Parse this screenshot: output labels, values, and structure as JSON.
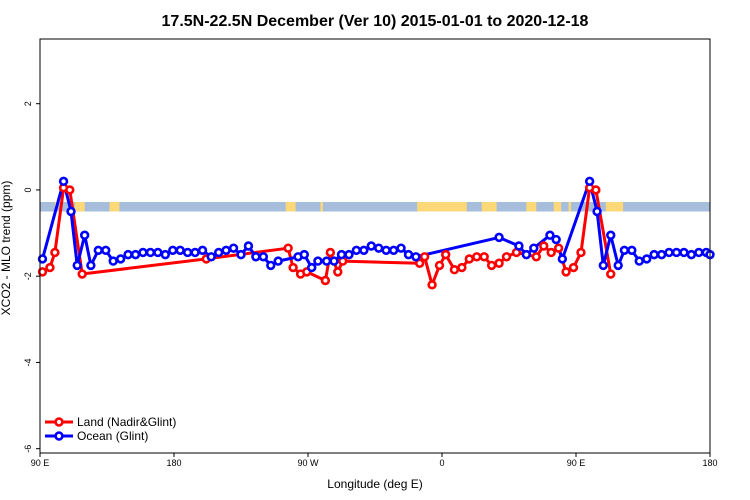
{
  "chart_data": {
    "type": "line",
    "title": "17.5N-22.5N December (Ver 10)   2015-01-01 to 2020-12-18",
    "xlabel": "Longitude (deg E)",
    "ylabel": "XCO2 - MLO trend (ppm)",
    "xlim": [
      -90,
      180
    ],
    "ylim": [
      -6.1,
      3.5
    ],
    "x_ticks": [
      {
        "value": -90,
        "label": "90 E"
      },
      {
        "value": -36,
        "label": "180"
      },
      {
        "value": 18,
        "label": "90 W"
      },
      {
        "value": 72,
        "label": "0"
      },
      {
        "value": 126,
        "label": "90 E"
      },
      {
        "value": 180,
        "label": "180"
      }
    ],
    "y_ticks": [
      {
        "value": 2,
        "label": "2"
      },
      {
        "value": 0,
        "label": "0"
      },
      {
        "value": -2,
        "label": "-2"
      },
      {
        "value": -4,
        "label": "-4"
      },
      {
        "value": -6,
        "label": "-6"
      }
    ],
    "land_ocean_band": {
      "y_top": -0.28,
      "y_bottom": -0.5,
      "ocean_color": "#a6bddb",
      "land_color": "#fdd878",
      "land_segments": [
        [
          -84,
          -83
        ],
        [
          -76,
          -72
        ],
        [
          -62,
          -58
        ],
        [
          9,
          13
        ],
        [
          23,
          24
        ],
        [
          62,
          82
        ],
        [
          88,
          94
        ],
        [
          106,
          110
        ],
        [
          117,
          120
        ],
        [
          123,
          124
        ],
        [
          138,
          145
        ]
      ]
    },
    "series": [
      {
        "name": "Land (Nadir&Glint)",
        "color": "#ff0000",
        "points": [
          [
            -89,
            -1.9
          ],
          [
            -86,
            -1.8
          ],
          [
            -84,
            -1.45
          ],
          [
            -80.5,
            0.05
          ],
          [
            -78,
            0.0
          ],
          [
            -73,
            -1.95
          ],
          [
            -23,
            -1.6
          ],
          [
            10,
            -1.35
          ],
          [
            12,
            -1.8
          ],
          [
            15,
            -1.95
          ],
          [
            17.5,
            -1.9
          ],
          [
            25,
            -2.1
          ],
          [
            27,
            -1.45
          ],
          [
            30,
            -1.9
          ],
          [
            32,
            -1.65
          ],
          [
            63,
            -1.7
          ],
          [
            65,
            -1.55
          ],
          [
            68,
            -2.2
          ],
          [
            71,
            -1.75
          ],
          [
            73.5,
            -1.5
          ],
          [
            77,
            -1.85
          ],
          [
            80,
            -1.8
          ],
          [
            83,
            -1.6
          ],
          [
            86,
            -1.55
          ],
          [
            89,
            -1.55
          ],
          [
            92,
            -1.75
          ],
          [
            95,
            -1.7
          ],
          [
            98,
            -1.55
          ],
          [
            102,
            -1.45
          ],
          [
            110,
            -1.55
          ],
          [
            113,
            -1.3
          ],
          [
            116,
            -1.45
          ],
          [
            119,
            -1.35
          ],
          [
            122,
            -1.9
          ],
          [
            125,
            -1.8
          ],
          [
            128,
            -1.45
          ],
          [
            131.5,
            0.05
          ],
          [
            134,
            0.0
          ],
          [
            140,
            -1.95
          ]
        ]
      },
      {
        "name": "Ocean (Glint)",
        "color": "#0000ff",
        "points": [
          [
            -89,
            -1.6
          ],
          [
            -80.5,
            0.2
          ],
          [
            -77.5,
            -0.5
          ],
          [
            -75,
            -1.75
          ],
          [
            -72,
            -1.05
          ],
          [
            -69.5,
            -1.75
          ],
          [
            -66.5,
            -1.4
          ],
          [
            -63.5,
            -1.4
          ],
          [
            -60.5,
            -1.65
          ],
          [
            -57.5,
            -1.6
          ],
          [
            -54.5,
            -1.5
          ],
          [
            -51.5,
            -1.5
          ],
          [
            -48.5,
            -1.45
          ],
          [
            -45.5,
            -1.45
          ],
          [
            -42.5,
            -1.45
          ],
          [
            -39.5,
            -1.5
          ],
          [
            -36.5,
            -1.4
          ],
          [
            -33.5,
            -1.4
          ],
          [
            -30.5,
            -1.45
          ],
          [
            -27.5,
            -1.45
          ],
          [
            -24.5,
            -1.4
          ],
          [
            -21,
            -1.55
          ],
          [
            -18,
            -1.45
          ],
          [
            -15,
            -1.4
          ],
          [
            -12,
            -1.35
          ],
          [
            -9,
            -1.5
          ],
          [
            -6,
            -1.3
          ],
          [
            -3,
            -1.55
          ],
          [
            0,
            -1.55
          ],
          [
            3,
            -1.75
          ],
          [
            6,
            -1.65
          ],
          [
            14,
            -1.55
          ],
          [
            16.5,
            -1.5
          ],
          [
            19.5,
            -1.8
          ],
          [
            22,
            -1.65
          ],
          [
            25.5,
            -1.65
          ],
          [
            28.5,
            -1.65
          ],
          [
            31.5,
            -1.5
          ],
          [
            34.5,
            -1.5
          ],
          [
            37.5,
            -1.4
          ],
          [
            40.5,
            -1.4
          ],
          [
            43.5,
            -1.3
          ],
          [
            46.5,
            -1.35
          ],
          [
            49.5,
            -1.4
          ],
          [
            52.5,
            -1.4
          ],
          [
            55.5,
            -1.35
          ],
          [
            58.5,
            -1.5
          ],
          [
            61.5,
            -1.55
          ],
          [
            95,
            -1.1
          ],
          [
            103,
            -1.3
          ],
          [
            106,
            -1.5
          ],
          [
            109,
            -1.35
          ],
          [
            115.5,
            -1.05
          ],
          [
            118,
            -1.15
          ],
          [
            120.5,
            -1.6
          ],
          [
            131.5,
            0.2
          ],
          [
            134.5,
            -0.5
          ],
          [
            137,
            -1.75
          ],
          [
            140,
            -1.05
          ],
          [
            143,
            -1.75
          ],
          [
            145.5,
            -1.4
          ],
          [
            148.5,
            -1.4
          ],
          [
            151.5,
            -1.65
          ],
          [
            154.5,
            -1.6
          ],
          [
            157.5,
            -1.5
          ],
          [
            160.5,
            -1.5
          ],
          [
            163.5,
            -1.45
          ],
          [
            166.5,
            -1.45
          ],
          [
            169.5,
            -1.45
          ],
          [
            172.5,
            -1.5
          ],
          [
            175.5,
            -1.45
          ],
          [
            178.5,
            -1.45
          ],
          [
            180,
            -1.5
          ]
        ]
      }
    ],
    "legend": "bottom-left"
  }
}
